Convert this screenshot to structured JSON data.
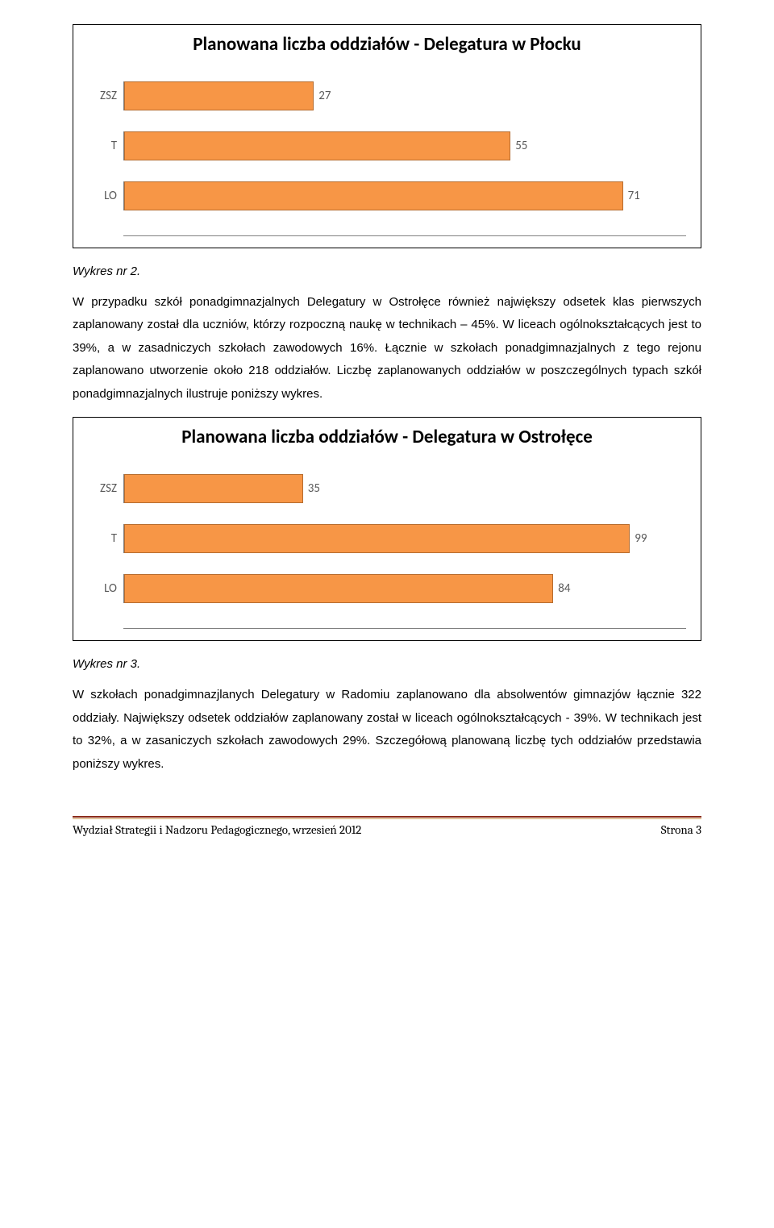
{
  "chart1": {
    "type": "bar-horizontal",
    "title": "Planowana liczba oddziałów - Delegatura w Płocku",
    "title_fontsize": 23,
    "bar_color": "#f79646",
    "bar_border_color": "#b66d30",
    "label_color": "#595959",
    "label_fontsize": 15,
    "value_fontsize": 15,
    "background_color": "#ffffff",
    "border_color": "#000000",
    "axis_color": "#808080",
    "xlim_max": 80,
    "bars": [
      {
        "label": "ZSZ",
        "value": 27
      },
      {
        "label": "T",
        "value": 55
      },
      {
        "label": "LO",
        "value": 71
      }
    ]
  },
  "caption1": "Wykres nr 2.",
  "para1": "W przypadku szkół ponadgimnazjalnych Delegatury w Ostrołęce również największy odsetek klas pierwszych zaplanowany został dla uczniów, którzy rozpoczną naukę w technikach – 45%. W liceach ogólnokształcących jest to 39%, a w zasadniczych szkołach zawodowych 16%. Łącznie w szkołach ponadgimnazjalnych z tego rejonu zaplanowano utworzenie około 218 oddziałów. Liczbę zaplanowanych oddziałów w poszczególnych typach szkół ponadgimnazjalnych ilustruje poniższy wykres.",
  "chart2": {
    "type": "bar-horizontal",
    "title": "Planowana liczba oddziałów - Delegatura w Ostrołęce",
    "title_fontsize": 23,
    "bar_color": "#f79646",
    "bar_border_color": "#b66d30",
    "label_color": "#595959",
    "label_fontsize": 15,
    "value_fontsize": 15,
    "background_color": "#ffffff",
    "border_color": "#000000",
    "axis_color": "#808080",
    "xlim_max": 110,
    "bars": [
      {
        "label": "ZSZ",
        "value": 35
      },
      {
        "label": "T",
        "value": 99
      },
      {
        "label": "LO",
        "value": 84
      }
    ]
  },
  "caption2": "Wykres nr 3.",
  "para2": "W szkołach ponadgimnazjlanych Delegatury w Radomiu zaplanowano dla absolwentów gimnazjów łącznie 322 oddziały. Największy odsetek oddziałów zaplanowany został w liceach ogólnokształcących - 39%. W technikach jest to 32%, a w zasaniczych szkołach zawodowych 29%. Szczegółową planowaną liczbę tych oddziałów przedstawia poniższy wykres.",
  "footer": {
    "left": "Wydział Strategii i Nadzoru Pedagogicznego, wrzesień 2012",
    "right": "Strona 3",
    "rule_top_color": "#8b2b1a",
    "rule_bottom_color": "#cfa060"
  }
}
